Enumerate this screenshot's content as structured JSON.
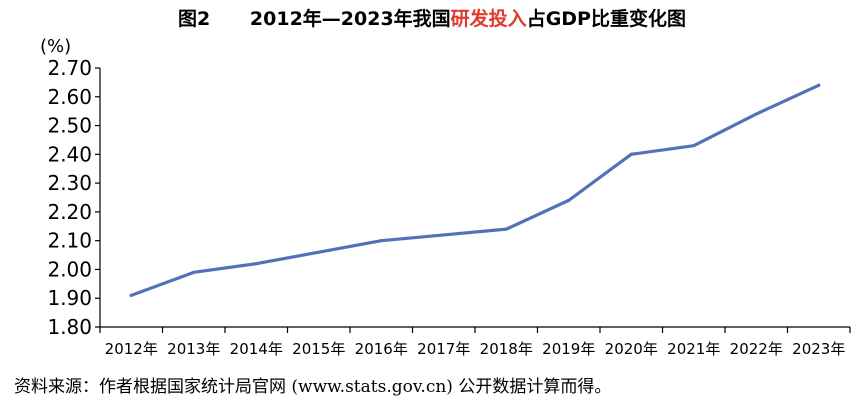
{
  "chart_data": {
    "type": "line",
    "title": {
      "prefix": "图2      2012年—2023年我国",
      "highlight": "研发投入",
      "suffix": "占GDP比重变化图"
    },
    "ylabel": "(%)",
    "xlabel": "",
    "categories": [
      "2012年",
      "2013年",
      "2014年",
      "2015年",
      "2016年",
      "2017年",
      "2018年",
      "2019年",
      "2020年",
      "2021年",
      "2022年",
      "2023年"
    ],
    "yticks": [
      "1.80",
      "1.90",
      "2.00",
      "2.10",
      "2.20",
      "2.30",
      "2.40",
      "2.50",
      "2.60",
      "2.70"
    ],
    "ylim": [
      1.8,
      2.7
    ],
    "series": [
      {
        "values": [
          1.91,
          1.99,
          2.02,
          2.06,
          2.1,
          2.12,
          2.14,
          2.24,
          2.4,
          2.43,
          2.54,
          2.64
        ]
      }
    ],
    "colors": {
      "line": "#5470b8",
      "axis": "#000000",
      "highlight": "#e03a2e"
    },
    "grid": false,
    "legend": "none"
  },
  "source": "资料来源：作者根据国家统计局官网 (www.stats.gov.cn) 公开数据计算而得。"
}
